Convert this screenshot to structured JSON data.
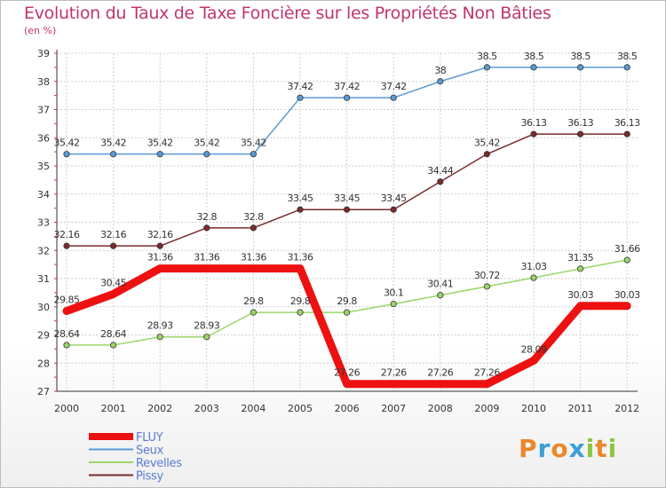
{
  "title": "Evolution du Taux de Taxe Foncière sur les Propriétés Non Bâties",
  "subtitle": "(en %)",
  "logo": {
    "letters": [
      "P",
      "r",
      "o",
      "x",
      "i",
      "t",
      "i"
    ],
    "colors": [
      "#e8892b",
      "#3aa0d8",
      "#e8892b",
      "#3aa0d8",
      "#8cc63f",
      "#e8892b",
      "#8cc63f"
    ]
  },
  "chart_data": {
    "type": "line",
    "x": [
      "2000",
      "2001",
      "2002",
      "2003",
      "2004",
      "2005",
      "2006",
      "2007",
      "2008",
      "2009",
      "2010",
      "2011",
      "2012"
    ],
    "ylim": [
      27,
      39
    ],
    "yticks": [
      27,
      28,
      29,
      30,
      31,
      32,
      33,
      34,
      35,
      36,
      37,
      38,
      39
    ],
    "grid": true,
    "legend": "bottom-left",
    "series": [
      {
        "name": "FLUY",
        "color": "#ee1111",
        "width": 9,
        "labels": [
          "29.85",
          "30.45",
          "31.36",
          "31.36",
          "31.36",
          "31.36",
          "27.26",
          "27.26",
          "27.26",
          "27.26",
          "28.09",
          "30.03",
          "30.03"
        ],
        "values": [
          29.85,
          30.45,
          31.36,
          31.36,
          31.36,
          31.36,
          27.26,
          27.26,
          27.26,
          27.26,
          28.09,
          30.03,
          30.03
        ]
      },
      {
        "name": "Seux",
        "color": "#5b9bd5",
        "width": 1.5,
        "labels": [
          "35.42",
          "35.42",
          "35.42",
          "35.42",
          "35.42",
          "37.42",
          "37.42",
          "37.42",
          "38",
          "38.5",
          "38.5",
          "38.5",
          "38.5"
        ],
        "values": [
          35.42,
          35.42,
          35.42,
          35.42,
          35.42,
          37.42,
          37.42,
          37.42,
          38,
          38.5,
          38.5,
          38.5,
          38.5
        ]
      },
      {
        "name": "Revelles",
        "color": "#99d66a",
        "width": 1.5,
        "labels": [
          "28.64",
          "28.64",
          "28.93",
          "28.93",
          "29.8",
          "29.8",
          "29.8",
          "30.1",
          "30.41",
          "30.72",
          "31.03",
          "31.35",
          "31.66"
        ],
        "values": [
          28.64,
          28.64,
          28.93,
          28.93,
          29.8,
          29.8,
          29.8,
          30.1,
          30.41,
          30.72,
          31.03,
          31.35,
          31.66
        ]
      },
      {
        "name": "Pissy",
        "color": "#7a2b2b",
        "width": 1.5,
        "labels": [
          "32.16",
          "32.16",
          "32.16",
          "32.8",
          "32.8",
          "33.45",
          "33.45",
          "33.45",
          "34.44",
          "35.42",
          "36.13",
          "36.13",
          "36.13"
        ],
        "values": [
          32.16,
          32.16,
          32.16,
          32.8,
          32.8,
          33.45,
          33.45,
          33.45,
          34.44,
          35.42,
          36.13,
          36.13,
          36.13
        ]
      }
    ]
  }
}
